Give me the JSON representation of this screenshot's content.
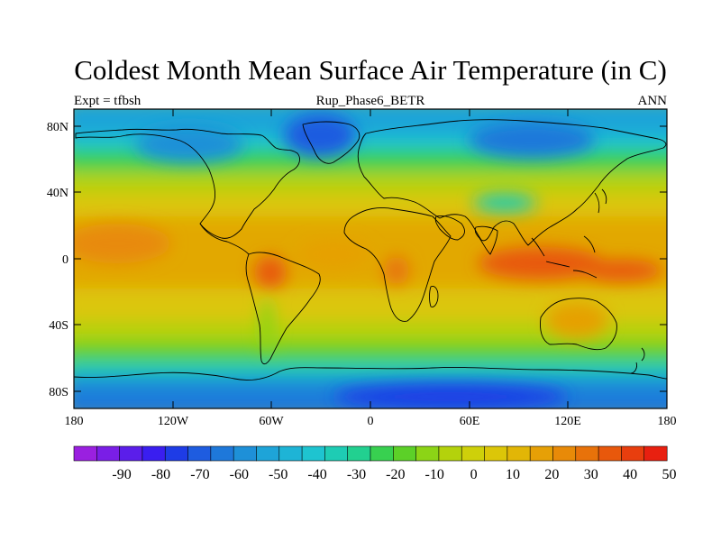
{
  "title": "Coldest Month Mean Surface Air Temperature (in C)",
  "subtitle_left": "Expt = tfbsh",
  "subtitle_center": "Rup_Phase6_BETR",
  "subtitle_right": "ANN",
  "lat_ticks": [
    "80N",
    "40N",
    "0",
    "40S",
    "80S"
  ],
  "lon_ticks": [
    "180",
    "120W",
    "60W",
    "0",
    "60E",
    "120E",
    "180"
  ],
  "colorbar": {
    "labels": [
      "-90",
      "-80",
      "-70",
      "-60",
      "-50",
      "-40",
      "-30",
      "-20",
      "-10",
      "0",
      "10",
      "20",
      "30",
      "40",
      "50"
    ],
    "colors": [
      "#9A20E0",
      "#7A1EE6",
      "#5B1EEA",
      "#3A1EF0",
      "#1E3CE6",
      "#1E5CE0",
      "#1E78DA",
      "#1E90D8",
      "#1EA4D8",
      "#1EB4D6",
      "#1EC4D0",
      "#1ECCB4",
      "#22D090",
      "#38D050",
      "#5CD028",
      "#8CD416",
      "#B4D20C",
      "#CED00A",
      "#DCC608",
      "#E2B606",
      "#E6A006",
      "#E88A08",
      "#E8720A",
      "#E8580C",
      "#E83E0E",
      "#E82010"
    ]
  },
  "field_colors": {
    "arctic": "#1E90D8",
    "polar": "#1EB4D6",
    "subpolar": "#22D090",
    "midlat": "#8CD416",
    "subtrop": "#CED00A",
    "tropic": "#E2B606",
    "warm": "#E88A08",
    "hot": "#E8580C",
    "ant": "#1E5CE0",
    "deep": "#1E3CE6",
    "greenland": "#1EA4D8",
    "siberia": "#1E78DA"
  }
}
